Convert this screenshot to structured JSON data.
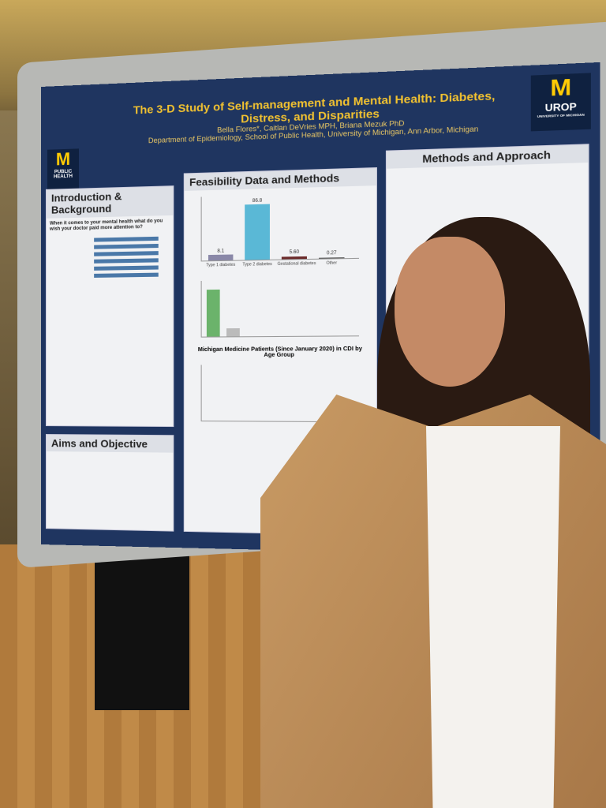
{
  "poster": {
    "title": "The 3-D Study of Self-management and Mental Health: Diabetes, Distress, and Disparities",
    "authors": "Bella Flores*, Caitlan DeVries MPH, Briana Mezuk PhD",
    "affiliation": "Department of Epidemiology, School of Public Health, University of Michigan, Ann Arbor, Michigan",
    "logo_left": {
      "mark": "M",
      "text": "PUBLIC HEALTH"
    },
    "logo_right": {
      "mark": "M",
      "text": "UROP",
      "sub": "UNIVERSITY OF MICHIGAN"
    },
    "sections": {
      "intro": {
        "heading": "Introduction & Background",
        "question": "When it comes to your mental health what do you wish your doctor paid more attention to?"
      },
      "aims": {
        "heading": "Aims and Objective"
      },
      "feasibility": {
        "heading": "Feasibility Data and Methods",
        "chart3_title": "Michigan Medicine Patients (Since January 2020) in CDI by Age Group"
      },
      "methods": {
        "heading": "Methods and Approach"
      }
    },
    "chart1_labels": [
      "Type 1 diabetes",
      "Type 2 diabetes",
      "Gestational diabetes",
      "Other"
    ],
    "chart1_values": [
      "8.1",
      "86.8",
      "5.60",
      "0.27"
    ]
  },
  "colors": {
    "poster_bg": "#1f3560",
    "title": "#f2c230",
    "maize": "#ffcb05"
  }
}
